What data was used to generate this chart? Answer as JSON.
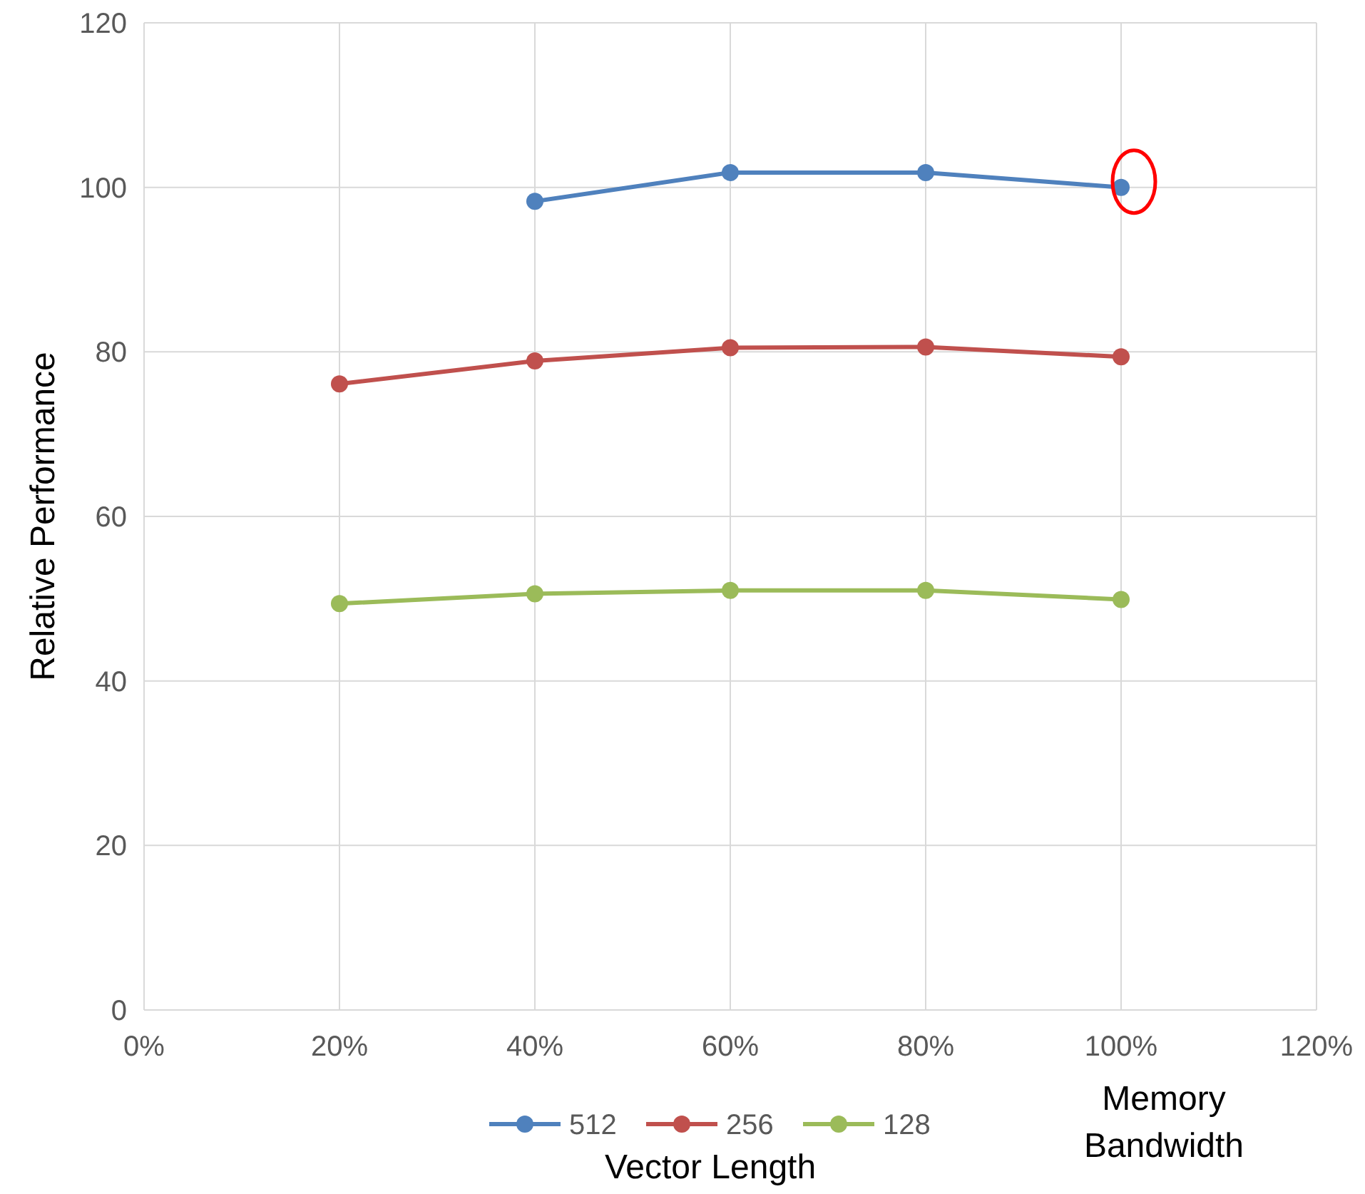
{
  "chart_data": {
    "type": "line",
    "xlabel": "Memory Bandwidth",
    "ylabel": "Relative Performance",
    "legend_title": "Vector Length",
    "x": [
      20,
      40,
      60,
      80,
      100
    ],
    "series": [
      {
        "name": "512",
        "color": "#4f81bd",
        "values": [
          null,
          98.3,
          101.8,
          101.8,
          100.0
        ]
      },
      {
        "name": "256",
        "color": "#c0504d",
        "values": [
          76.1,
          78.9,
          80.5,
          80.6,
          79.4
        ]
      },
      {
        "name": "128",
        "color": "#9bbb59",
        "values": [
          49.4,
          50.6,
          51.0,
          51.0,
          49.9
        ]
      }
    ],
    "xlim": [
      0,
      120
    ],
    "xticks": [
      {
        "value": 0,
        "label": "0%"
      },
      {
        "value": 20,
        "label": "20%"
      },
      {
        "value": 40,
        "label": "40%"
      },
      {
        "value": 60,
        "label": "60%"
      },
      {
        "value": 80,
        "label": "80%"
      },
      {
        "value": 100,
        "label": "100%"
      },
      {
        "value": 120,
        "label": "120%"
      }
    ],
    "ylim": [
      0,
      120
    ],
    "yticks": [
      0,
      20,
      40,
      60,
      80,
      100,
      120
    ],
    "grid": true,
    "legend": "bottom",
    "marker": "circle",
    "line_style": "solid"
  }
}
